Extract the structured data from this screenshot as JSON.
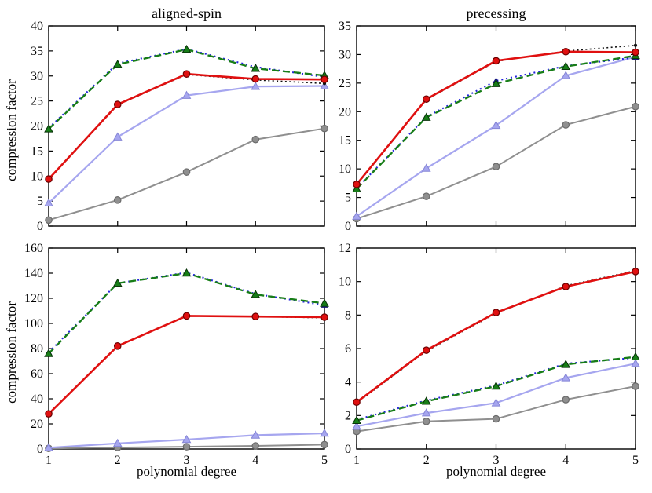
{
  "figure": {
    "title_left": "aligned-spin",
    "title_right": "precessing",
    "ylabel": "compression factor",
    "xlabel": "polynomial degree",
    "background_color": "#ffffff",
    "spine_color": "#000000"
  },
  "chart_data": [
    {
      "type": "line",
      "position": "top-left",
      "title": "aligned-spin",
      "ylabel": "compression factor",
      "xlabel": "",
      "x": [
        1,
        2,
        3,
        4,
        5
      ],
      "xlim": [
        1,
        5
      ],
      "ylim": [
        0,
        40
      ],
      "ytick_step": 5,
      "xticks": [
        1,
        2,
        3,
        4,
        5
      ],
      "show_xticklabels": false,
      "grid": false,
      "legend": "none",
      "series": [
        {
          "name": "gray-solid-circles",
          "color": "#8f8f8f",
          "edge": "#6b6b6b",
          "dash": "solid",
          "marker": "circle",
          "width": 2.0,
          "values": [
            1.2,
            5.2,
            10.8,
            17.3,
            19.5
          ]
        },
        {
          "name": "lightblue-solid-triangles",
          "color": "#a6a6ef",
          "edge": "#8585d6",
          "dash": "solid",
          "marker": "triangle",
          "width": 2.2,
          "values": [
            4.6,
            17.8,
            26.1,
            27.9,
            28.0
          ]
        },
        {
          "name": "blue-dashdot-triangles",
          "color": "#2323dd",
          "edge": "#11116b",
          "dash": "dashdot",
          "marker": "triangle-small",
          "width": 2.1,
          "values": [
            19.6,
            32.5,
            35.4,
            31.8,
            29.8
          ]
        },
        {
          "name": "green-dashed-triangles",
          "color": "#177d17",
          "edge": "#073307",
          "dash": "dashed",
          "marker": "triangle",
          "width": 2.3,
          "values": [
            19.4,
            32.3,
            35.3,
            31.5,
            30.1
          ]
        },
        {
          "name": "black-dotted-dots",
          "color": "#111111",
          "edge": "#111111",
          "dash": "dotted",
          "marker": "dot",
          "width": 1.6,
          "values": [
            9.3,
            24.2,
            30.3,
            29.2,
            28.5
          ]
        },
        {
          "name": "red-solid-circles",
          "color": "#e01010",
          "edge": "#6b0000",
          "dash": "solid",
          "marker": "circle",
          "width": 2.6,
          "values": [
            9.4,
            24.3,
            30.4,
            29.4,
            29.3
          ]
        }
      ]
    },
    {
      "type": "line",
      "position": "top-right",
      "title": "precessing",
      "ylabel": "",
      "xlabel": "",
      "x": [
        1,
        2,
        3,
        4,
        5
      ],
      "xlim": [
        1,
        5
      ],
      "ylim": [
        0,
        35
      ],
      "ytick_step": 5,
      "xticks": [
        1,
        2,
        3,
        4,
        5
      ],
      "show_xticklabels": false,
      "grid": false,
      "legend": "none",
      "series": [
        {
          "name": "gray-solid-circles",
          "color": "#8f8f8f",
          "edge": "#6b6b6b",
          "dash": "solid",
          "marker": "circle",
          "width": 2.0,
          "values": [
            1.3,
            5.2,
            10.4,
            17.7,
            20.9
          ]
        },
        {
          "name": "lightblue-solid-triangles",
          "color": "#a6a6ef",
          "edge": "#8585d6",
          "dash": "solid",
          "marker": "triangle",
          "width": 2.2,
          "values": [
            1.7,
            10.1,
            17.6,
            26.3,
            29.6
          ]
        },
        {
          "name": "blue-dashdot-triangles",
          "color": "#2323dd",
          "edge": "#11116b",
          "dash": "dashdot",
          "marker": "triangle-small",
          "width": 2.1,
          "values": [
            6.6,
            19.1,
            25.4,
            28.0,
            29.5
          ]
        },
        {
          "name": "green-dashed-triangles",
          "color": "#177d17",
          "edge": "#073307",
          "dash": "dashed",
          "marker": "triangle",
          "width": 2.3,
          "values": [
            6.5,
            19.0,
            24.9,
            27.9,
            29.8
          ]
        },
        {
          "name": "black-dotted-dots",
          "color": "#111111",
          "edge": "#111111",
          "dash": "dotted",
          "marker": "dot",
          "width": 1.6,
          "values": [
            7.2,
            22.1,
            28.8,
            30.6,
            31.6
          ]
        },
        {
          "name": "red-solid-circles",
          "color": "#e01010",
          "edge": "#6b0000",
          "dash": "solid",
          "marker": "circle",
          "width": 2.6,
          "values": [
            7.3,
            22.2,
            28.9,
            30.5,
            30.4
          ]
        }
      ]
    },
    {
      "type": "line",
      "position": "bottom-left",
      "title": "",
      "ylabel": "compression factor",
      "xlabel": "polynomial degree",
      "x": [
        1,
        2,
        3,
        4,
        5
      ],
      "xlim": [
        1,
        5
      ],
      "ylim": [
        0,
        160
      ],
      "ytick_step": 20,
      "xticks": [
        1,
        2,
        3,
        4,
        5
      ],
      "show_xticklabels": true,
      "grid": false,
      "legend": "none",
      "series": [
        {
          "name": "gray-solid-circles",
          "color": "#8f8f8f",
          "edge": "#6b6b6b",
          "dash": "solid",
          "marker": "circle",
          "width": 2.0,
          "values": [
            0.5,
            1.2,
            1.8,
            2.5,
            3.5
          ]
        },
        {
          "name": "lightblue-solid-triangles",
          "color": "#a6a6ef",
          "edge": "#8585d6",
          "dash": "solid",
          "marker": "triangle",
          "width": 2.2,
          "values": [
            1.0,
            4.5,
            7.5,
            11.0,
            12.5
          ]
        },
        {
          "name": "blue-dashdot-triangles",
          "color": "#2323dd",
          "edge": "#11116b",
          "dash": "dashdot",
          "marker": "triangle-small",
          "width": 2.1,
          "values": [
            77.0,
            132.0,
            140.5,
            123.5,
            114.5
          ]
        },
        {
          "name": "green-dashed-triangles",
          "color": "#177d17",
          "edge": "#073307",
          "dash": "dashed",
          "marker": "triangle",
          "width": 2.3,
          "values": [
            76.0,
            132.0,
            140.0,
            123.0,
            116.0
          ]
        },
        {
          "name": "black-dotted-dots",
          "color": "#111111",
          "edge": "#111111",
          "dash": "dotted",
          "marker": "dot",
          "width": 1.6,
          "values": [
            28.0,
            82.0,
            106.0,
            105.5,
            104.5
          ]
        },
        {
          "name": "red-solid-circles",
          "color": "#e01010",
          "edge": "#6b0000",
          "dash": "solid",
          "marker": "circle",
          "width": 2.6,
          "values": [
            28.0,
            82.0,
            106.0,
            105.5,
            105.0
          ]
        }
      ]
    },
    {
      "type": "line",
      "position": "bottom-right",
      "title": "",
      "ylabel": "",
      "xlabel": "polynomial degree",
      "x": [
        1,
        2,
        3,
        4,
        5
      ],
      "xlim": [
        1,
        5
      ],
      "ylim": [
        0,
        12
      ],
      "ytick_step": 2,
      "xticks": [
        1,
        2,
        3,
        4,
        5
      ],
      "show_xticklabels": true,
      "grid": false,
      "legend": "none",
      "series": [
        {
          "name": "gray-solid-circles",
          "color": "#8f8f8f",
          "edge": "#6b6b6b",
          "dash": "solid",
          "marker": "circle",
          "width": 2.0,
          "values": [
            1.05,
            1.65,
            1.8,
            2.95,
            3.75
          ]
        },
        {
          "name": "lightblue-solid-triangles",
          "color": "#a6a6ef",
          "edge": "#8585d6",
          "dash": "solid",
          "marker": "triangle",
          "width": 2.2,
          "values": [
            1.35,
            2.15,
            2.75,
            4.25,
            5.1
          ]
        },
        {
          "name": "blue-dashdot-triangles",
          "color": "#2323dd",
          "edge": "#11116b",
          "dash": "dashdot",
          "marker": "triangle-small",
          "width": 2.1,
          "values": [
            1.75,
            2.9,
            3.8,
            5.1,
            5.45
          ]
        },
        {
          "name": "green-dashed-triangles",
          "color": "#177d17",
          "edge": "#073307",
          "dash": "dashed",
          "marker": "triangle",
          "width": 2.3,
          "values": [
            1.7,
            2.85,
            3.75,
            5.05,
            5.5
          ]
        },
        {
          "name": "black-dotted-dots",
          "color": "#111111",
          "edge": "#111111",
          "dash": "dotted",
          "marker": "dot",
          "width": 1.6,
          "values": [
            2.75,
            5.85,
            8.1,
            9.75,
            10.65
          ]
        },
        {
          "name": "red-solid-circles",
          "color": "#e01010",
          "edge": "#6b0000",
          "dash": "solid",
          "marker": "circle",
          "width": 2.6,
          "values": [
            2.8,
            5.9,
            8.15,
            9.7,
            10.6
          ]
        }
      ]
    }
  ]
}
